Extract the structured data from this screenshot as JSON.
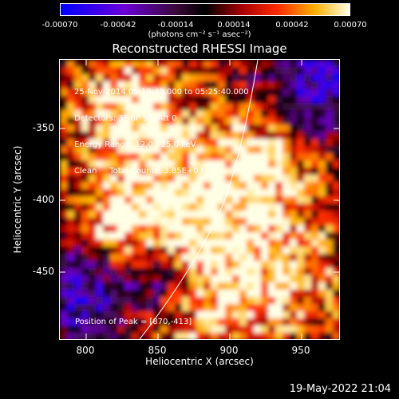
{
  "colorbar": {
    "ticks": [
      "-0.00070",
      "-0.00042",
      "-0.00014",
      "0.00014",
      "0.00042",
      "0.00070"
    ],
    "units": "(photons cm⁻² s⁻¹ asec⁻²)"
  },
  "title": "Reconstructed RHESSI Image",
  "info": {
    "line1": "25-Nov-2014 05:19:40.000 to 05:25:40.000",
    "line2": "Detectors: 3F 6F 9F, Att 0",
    "line3": "Energy Range: 12.0 - 25.0 keV",
    "line4": "Clean     Total Counts: 3.85E+03"
  },
  "peak": "Position of Peak = [870,-413]",
  "axes": {
    "xlabel": "Heliocentric X (arcsec)",
    "ylabel": "Heliocentric Y (arcsec)",
    "xticks": [
      "800",
      "850",
      "900",
      "950"
    ],
    "yticks": [
      "-350",
      "-400",
      "-450"
    ]
  },
  "timestamp": "19-May-2022 21:04"
}
